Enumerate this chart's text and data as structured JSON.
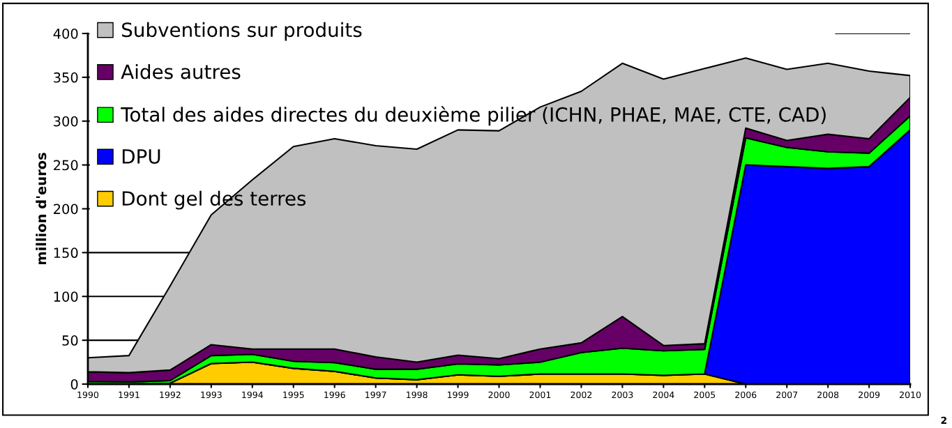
{
  "chart_data": {
    "type": "area",
    "stacked": true,
    "ylabel": "million d'euros",
    "categories": [
      "1990",
      "1991",
      "1992",
      "1993",
      "1994",
      "1995",
      "1996",
      "1997",
      "1998",
      "1999",
      "2000",
      "2001",
      "2002",
      "2003",
      "2004",
      "2005",
      "2006",
      "2007",
      "2008",
      "2009",
      "2010"
    ],
    "series": [
      {
        "name": "Dont gel des terres",
        "color": "#ffcc00",
        "values": [
          0,
          0,
          1,
          23.5,
          25,
          18,
          14.5,
          7,
          5,
          10.5,
          9,
          11.5,
          11.5,
          11.5,
          10,
          11.5,
          0,
          0,
          0,
          0,
          0
        ]
      },
      {
        "name": "DPU",
        "color": "#0000ff",
        "values": [
          0,
          0,
          0,
          0,
          0,
          0,
          0,
          0,
          0,
          0,
          0,
          0,
          0,
          0,
          0,
          0,
          250,
          248,
          246,
          248,
          290
        ]
      },
      {
        "name": "Total des aides directes du deuxième pilier (ICHN, PHAE, MAE, CTE, CAD)",
        "color": "#00ff00",
        "values": [
          3,
          2.5,
          3,
          9,
          9,
          8,
          10,
          10,
          12,
          12.5,
          13,
          13.5,
          24.5,
          29.5,
          28,
          28,
          31,
          22,
          19,
          15.5,
          16
        ]
      },
      {
        "name": "Aides autres",
        "color": "#660066",
        "values": [
          11,
          10.5,
          12,
          12.5,
          6,
          14,
          15.5,
          14,
          8,
          10,
          7,
          15,
          11,
          36,
          6,
          6.5,
          11,
          8,
          20,
          16.5,
          21
        ]
      },
      {
        "name": "Subventions sur produits",
        "color": "#c0c0c0",
        "values": [
          16,
          19.5,
          96,
          148,
          193,
          231,
          240,
          241,
          243,
          257,
          260,
          276,
          287,
          289,
          304,
          314,
          80,
          81,
          81,
          77,
          25
        ]
      }
    ],
    "ylim": [
      0,
      400
    ],
    "yticks": [
      0,
      50,
      100,
      150,
      200,
      250,
      300,
      350,
      400
    ],
    "grid": "y",
    "legend": "top left",
    "annotations": [
      "2"
    ]
  }
}
